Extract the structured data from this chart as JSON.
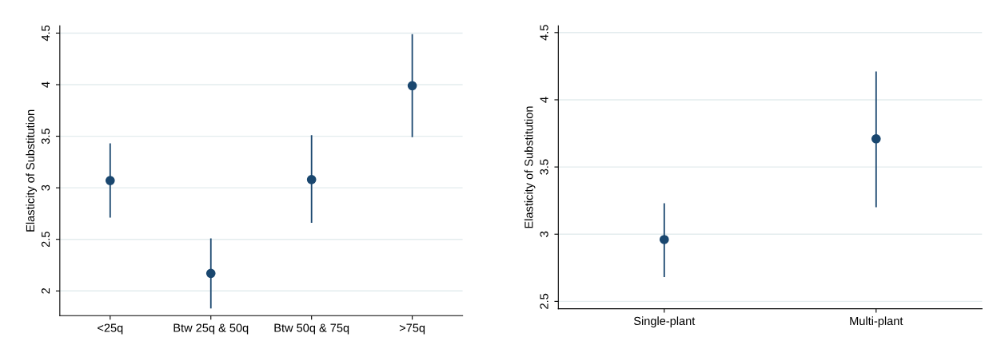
{
  "chart_data": [
    {
      "type": "scatter",
      "ylabel": "Elasticity of Substitution",
      "categories": [
        "<25q",
        "Btw 25q & 50q",
        "Btw 50q & 75q",
        ">75q"
      ],
      "values": [
        3.07,
        2.17,
        3.08,
        3.99
      ],
      "errors": [
        [
          2.71,
          3.43
        ],
        [
          1.83,
          2.51
        ],
        [
          2.66,
          3.51
        ],
        [
          3.49,
          4.49
        ]
      ],
      "color": "#1a476f",
      "marker": "circle",
      "ylim": [
        1.76,
        4.57
      ],
      "yticks": [
        2,
        2.5,
        3,
        3.5,
        4,
        4.5
      ],
      "grid": "y",
      "legend": false
    },
    {
      "type": "scatter",
      "ylabel": "Elasticity of Substitution",
      "categories": [
        "Single-plant",
        "Multi-plant"
      ],
      "values": [
        2.96,
        3.71
      ],
      "errors": [
        [
          2.68,
          3.23
        ],
        [
          3.2,
          4.21
        ]
      ],
      "color": "#1a476f",
      "marker": "circle",
      "ylim": [
        2.445,
        4.55
      ],
      "yticks": [
        2.5,
        3,
        3.5,
        4,
        4.5
      ],
      "grid": "y",
      "legend": false
    }
  ]
}
